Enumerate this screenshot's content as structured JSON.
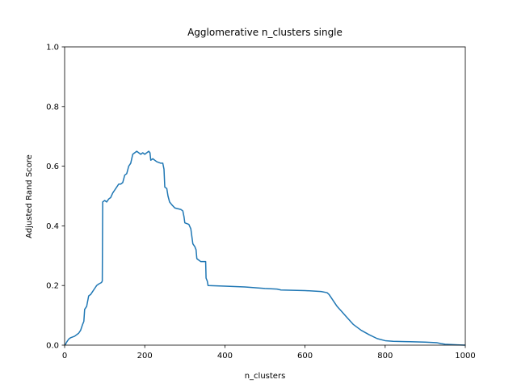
{
  "chart_data": {
    "type": "line",
    "title": "Agglomerative n_clusters single",
    "xlabel": "n_clusters",
    "ylabel": "Adjusted Rand Score",
    "xlim": [
      0,
      1000
    ],
    "ylim": [
      0,
      1
    ],
    "xticks": [
      0,
      200,
      400,
      600,
      800,
      1000
    ],
    "yticks": [
      {
        "value": 0,
        "label": "0.0"
      },
      {
        "value": 0.2,
        "label": "0.2"
      },
      {
        "value": 0.4,
        "label": "0.4"
      },
      {
        "value": 0.6,
        "label": "0.6"
      },
      {
        "value": 0.8,
        "label": "0.8"
      },
      {
        "value": 1,
        "label": "1.0"
      }
    ],
    "grid": false,
    "x": [
      1,
      5,
      10,
      15,
      25,
      35,
      40,
      45,
      48,
      50,
      55,
      60,
      65,
      70,
      75,
      80,
      85,
      92,
      94,
      95,
      100,
      105,
      110,
      115,
      120,
      125,
      130,
      135,
      140,
      145,
      150,
      155,
      160,
      165,
      170,
      175,
      180,
      185,
      190,
      195,
      200,
      205,
      210,
      213,
      215,
      220,
      230,
      240,
      245,
      248,
      250,
      255,
      258,
      262,
      268,
      275,
      290,
      295,
      298,
      300,
      310,
      315,
      320,
      325,
      328,
      330,
      335,
      340,
      352,
      353,
      356,
      358,
      400,
      450,
      500,
      530,
      540,
      600,
      640,
      655,
      660,
      670,
      680,
      690,
      700,
      710,
      720,
      740,
      760,
      780,
      800,
      820,
      850,
      900,
      930,
      940,
      950,
      980,
      1000
    ],
    "series": [
      {
        "name": "Adjusted Rand Score",
        "color": "#1f77b4",
        "values": [
          0.0,
          0.01,
          0.02,
          0.025,
          0.03,
          0.04,
          0.05,
          0.07,
          0.08,
          0.12,
          0.13,
          0.165,
          0.17,
          0.18,
          0.19,
          0.2,
          0.205,
          0.21,
          0.215,
          0.48,
          0.485,
          0.48,
          0.49,
          0.495,
          0.51,
          0.52,
          0.53,
          0.54,
          0.54,
          0.545,
          0.57,
          0.575,
          0.6,
          0.61,
          0.64,
          0.645,
          0.65,
          0.645,
          0.64,
          0.645,
          0.64,
          0.645,
          0.65,
          0.645,
          0.62,
          0.625,
          0.615,
          0.61,
          0.61,
          0.59,
          0.53,
          0.525,
          0.5,
          0.48,
          0.47,
          0.46,
          0.455,
          0.45,
          0.43,
          0.41,
          0.405,
          0.39,
          0.34,
          0.33,
          0.32,
          0.29,
          0.285,
          0.28,
          0.28,
          0.225,
          0.215,
          0.2,
          0.198,
          0.195,
          0.19,
          0.188,
          0.185,
          0.183,
          0.18,
          0.176,
          0.17,
          0.15,
          0.13,
          0.115,
          0.1,
          0.085,
          0.07,
          0.05,
          0.035,
          0.022,
          0.015,
          0.013,
          0.012,
          0.01,
          0.008,
          0.005,
          0.003,
          0.001,
          0.0
        ]
      }
    ]
  }
}
